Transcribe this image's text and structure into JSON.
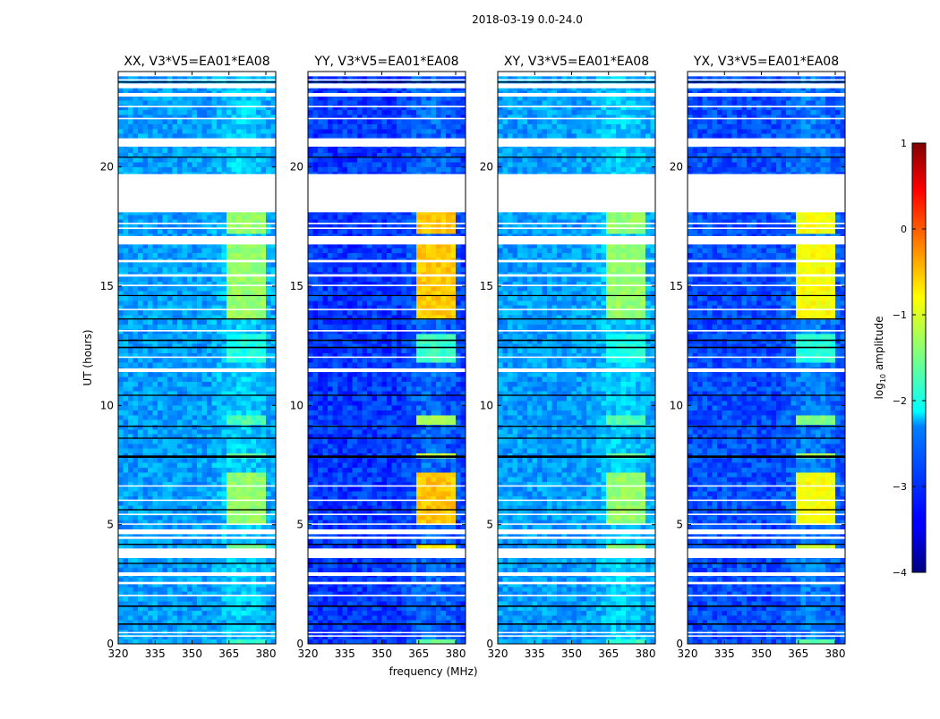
{
  "chart_data": {
    "type": "heatmap",
    "title": "2018-03-19 0.0-24.0",
    "xlabel": "frequency (MHz)",
    "ylabel": "UT (hours)",
    "xlim": [
      320,
      384
    ],
    "ylim": [
      0,
      24
    ],
    "xticks": [
      320,
      335,
      350,
      365,
      380
    ],
    "yticks": [
      0,
      5,
      10,
      15,
      20
    ],
    "colormap": "jet",
    "colorbar": {
      "label": "log10 amplitude",
      "label_main": "log",
      "label_sub": "10",
      "label_rest": " amplitude",
      "range": [
        -4,
        1
      ],
      "ticks": [
        1,
        0,
        -1,
        -2,
        -3,
        -4
      ],
      "tick_labels": [
        "1",
        "0",
        "−1",
        "−2",
        "−3",
        "−4"
      ]
    },
    "panels": [
      {
        "title": "XX, V3*V5=EA01*EA08",
        "base_log_amp": -2.6,
        "rfi_log_amp": -1.4
      },
      {
        "title": "YY, V3*V5=EA01*EA08",
        "base_log_amp": -3.1,
        "rfi_log_amp": -0.6
      },
      {
        "title": "XY, V3*V5=EA01*EA08",
        "base_log_amp": -2.6,
        "rfi_log_amp": -1.4
      },
      {
        "title": "YX, V3*V5=EA01*EA08",
        "base_log_amp": -3.0,
        "rfi_log_amp": -0.9
      }
    ],
    "rfi_bands_mhz": [
      [
        363.5,
        367
      ],
      [
        368,
        371.5
      ],
      [
        372.5,
        375.5
      ],
      [
        376.5,
        380
      ]
    ],
    "rfi_time_ranges_hours": [
      {
        "range": [
          0.0,
          0.3
        ],
        "strength": 0.6
      },
      {
        "range": [
          4.0,
          4.3
        ],
        "strength": 0.9
      },
      {
        "range": [
          5.0,
          7.2
        ],
        "strength": 1.0
      },
      {
        "range": [
          7.9,
          8.1
        ],
        "strength": 0.8
      },
      {
        "range": [
          9.2,
          9.5
        ],
        "strength": 0.7
      },
      {
        "range": [
          11.8,
          13.0
        ],
        "strength": 0.5
      },
      {
        "range": [
          13.6,
          16.75
        ],
        "strength": 1.0
      },
      {
        "range": [
          17.1,
          18.1
        ],
        "strength": 1.0
      }
    ],
    "flagged_intervals_hours": [
      [
        0.3,
        0.36
      ],
      [
        0.45,
        0.5
      ],
      [
        2.0,
        2.06
      ],
      [
        2.5,
        2.6
      ],
      [
        2.85,
        3.0
      ],
      [
        3.6,
        4.0
      ],
      [
        4.4,
        4.5
      ],
      [
        4.6,
        4.8
      ],
      [
        5.0,
        5.05
      ],
      [
        5.4,
        5.46
      ],
      [
        6.0,
        6.05
      ],
      [
        6.6,
        6.65
      ],
      [
        11.4,
        11.55
      ],
      [
        12.0,
        12.05
      ],
      [
        13.1,
        13.16
      ],
      [
        14.0,
        14.05
      ],
      [
        15.0,
        15.06
      ],
      [
        15.4,
        15.5
      ],
      [
        16.0,
        16.1
      ],
      [
        16.75,
        17.1
      ],
      [
        17.4,
        17.46
      ],
      [
        17.6,
        17.66
      ],
      [
        18.1,
        19.7
      ],
      [
        20.85,
        21.2
      ],
      [
        22.0,
        22.06
      ],
      [
        22.5,
        22.56
      ],
      [
        22.95,
        23.1
      ],
      [
        23.3,
        23.5
      ],
      [
        23.62,
        23.68
      ],
      [
        23.8,
        24.0
      ]
    ],
    "dropout_lines_hours": [
      [
        0.8,
        0.86
      ],
      [
        1.55,
        1.61
      ],
      [
        3.35,
        3.4
      ],
      [
        4.15,
        4.2
      ],
      [
        5.6,
        5.65
      ],
      [
        7.8,
        7.9
      ],
      [
        8.6,
        8.65
      ],
      [
        9.1,
        9.15
      ],
      [
        10.4,
        10.45
      ],
      [
        12.4,
        12.46
      ],
      [
        12.7,
        12.76
      ],
      [
        13.6,
        13.65
      ],
      [
        14.6,
        14.63
      ],
      [
        20.4,
        20.43
      ],
      [
        23.55,
        23.58
      ]
    ]
  }
}
